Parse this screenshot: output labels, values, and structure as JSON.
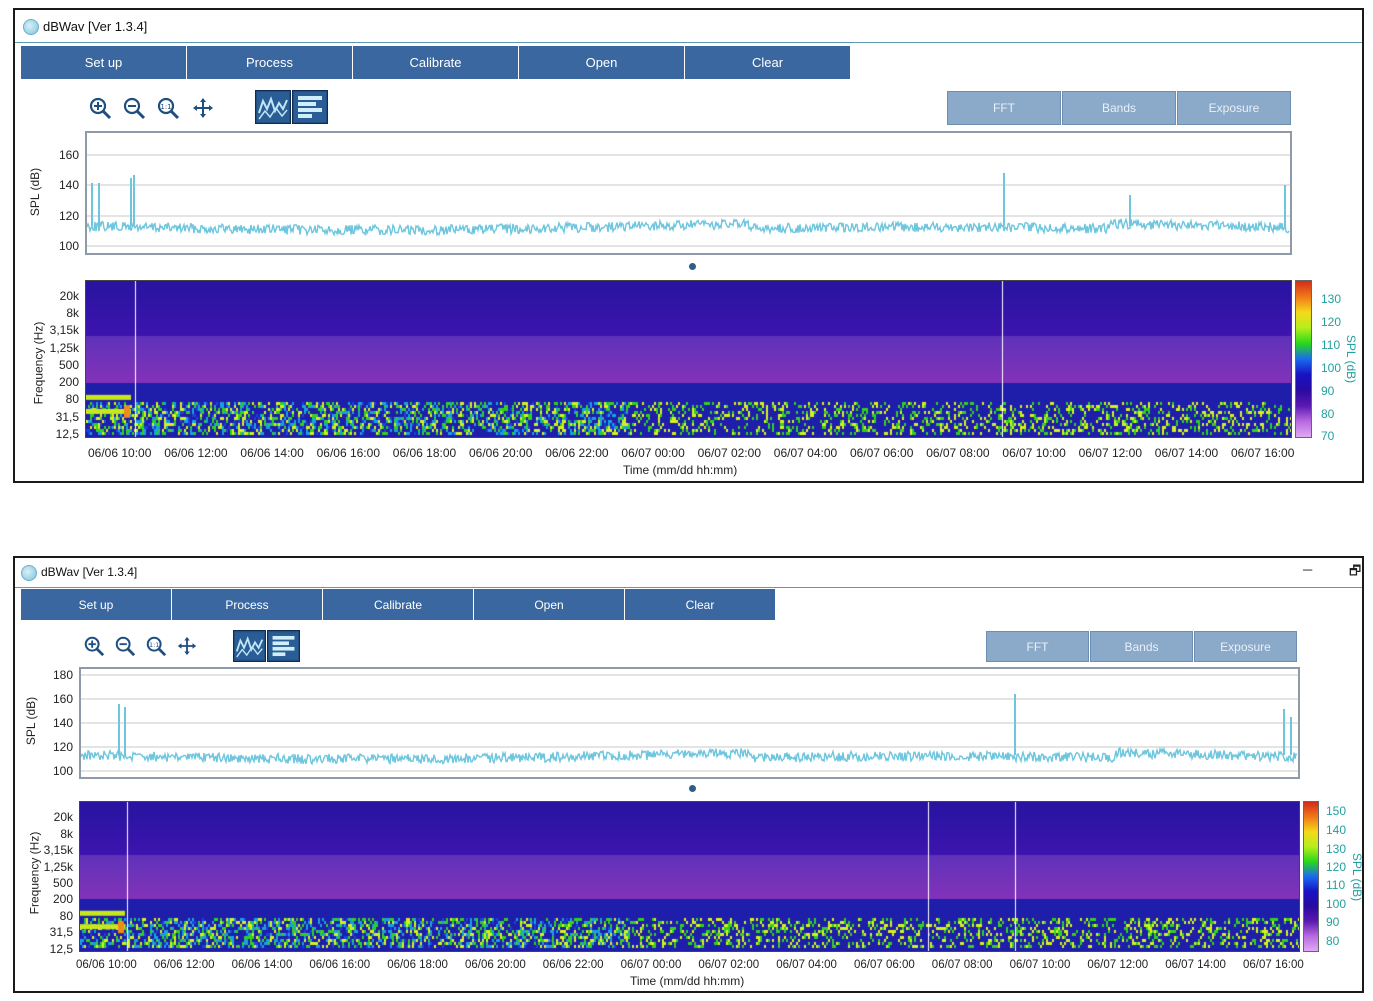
{
  "app": {
    "title": "dBWav [Ver 1.3.4]"
  },
  "menu": [
    "Set up",
    "Process",
    "Calibrate",
    "Open",
    "Clear"
  ],
  "tabs": [
    "FFT",
    "Bands",
    "Exposure"
  ],
  "window_controls": {
    "minimize": "─",
    "restore": "🗗"
  },
  "colors": {
    "menu_bg": "#3a679f",
    "tab_bg": "#8ba9c9",
    "trace": "#6ec6de",
    "axis_teal": "#23a0a0"
  },
  "icons": [
    "zoom-in-icon",
    "zoom-out-icon",
    "zoom-reset-icon",
    "pan-icon",
    "waveform-view-icon",
    "spectrogram-view-icon"
  ],
  "panels": [
    {
      "spl_axis": {
        "title": "SPL (dB)",
        "ticks": [
          "160",
          "140",
          "120",
          "100"
        ]
      },
      "freq_axis": {
        "title": "Frequency (Hz)",
        "ticks": [
          "20k",
          "8k",
          "3,15k",
          "1,25k",
          "500",
          "200",
          "80",
          "31,5",
          "12,5"
        ]
      },
      "colorbar": {
        "title": "SPL (dB)",
        "ticks": [
          "130",
          "120",
          "110",
          "100",
          "90",
          "80",
          "70"
        ]
      },
      "time_ticks": [
        "06/06 10:00",
        "06/06 12:00",
        "06/06 14:00",
        "06/06 16:00",
        "06/06 18:00",
        "06/06 20:00",
        "06/06 22:00",
        "06/07 00:00",
        "06/07 02:00",
        "06/07 04:00",
        "06/07 06:00",
        "06/07 08:00",
        "06/07 10:00",
        "06/07 12:00",
        "06/07 14:00",
        "06/07 16:00"
      ],
      "time_title": "Time (mm/dd hh:mm)"
    },
    {
      "spl_axis": {
        "title": "SPL (dB)",
        "ticks": [
          "180",
          "160",
          "140",
          "120",
          "100"
        ]
      },
      "freq_axis": {
        "title": "Frequency (Hz)",
        "ticks": [
          "20k",
          "8k",
          "3,15k",
          "1,25k",
          "500",
          "200",
          "80",
          "31,5",
          "12,5"
        ]
      },
      "colorbar": {
        "title": "SPL (dB)",
        "ticks": [
          "150",
          "140",
          "130",
          "120",
          "110",
          "100",
          "90",
          "80"
        ]
      },
      "time_ticks": [
        "06/06 10:00",
        "06/06 12:00",
        "06/06 14:00",
        "06/06 16:00",
        "06/06 18:00",
        "06/06 20:00",
        "06/06 22:00",
        "06/07 00:00",
        "06/07 02:00",
        "06/07 04:00",
        "06/07 06:00",
        "06/07 08:00",
        "06/07 10:00",
        "06/07 12:00",
        "06/07 14:00",
        "06/07 16:00"
      ],
      "time_title": "Time (mm/dd hh:mm)"
    }
  ]
}
